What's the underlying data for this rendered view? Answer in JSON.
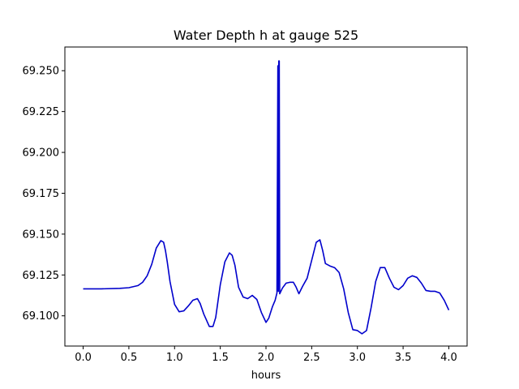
{
  "chart_data": {
    "type": "line",
    "title": "Water Depth h at gauge 525",
    "xlabel": "hours",
    "ylabel": "",
    "xlim": [
      -0.2,
      4.2
    ],
    "ylim": [
      69.0815,
      69.2645
    ],
    "xticks": [
      0.0,
      0.5,
      1.0,
      1.5,
      2.0,
      2.5,
      3.0,
      3.5,
      4.0
    ],
    "xtick_labels": [
      "0.0",
      "0.5",
      "1.0",
      "1.5",
      "2.0",
      "2.5",
      "3.0",
      "3.5",
      "4.0"
    ],
    "yticks": [
      69.1,
      69.125,
      69.15,
      69.175,
      69.2,
      69.225,
      69.25
    ],
    "ytick_labels": [
      "69.100",
      "69.125",
      "69.150",
      "69.175",
      "69.200",
      "69.225",
      "69.250"
    ],
    "grid": false,
    "series": [
      {
        "color": "#0000cc",
        "x": [
          0.0,
          0.2,
          0.4,
          0.5,
          0.6,
          0.65,
          0.7,
          0.75,
          0.8,
          0.85,
          0.88,
          0.9,
          0.92,
          0.95,
          1.0,
          1.05,
          1.1,
          1.15,
          1.2,
          1.25,
          1.28,
          1.32,
          1.38,
          1.42,
          1.45,
          1.5,
          1.55,
          1.6,
          1.63,
          1.66,
          1.7,
          1.75,
          1.8,
          1.85,
          1.9,
          1.95,
          2.0,
          2.03,
          2.07,
          2.1,
          2.12,
          2.13,
          2.135,
          2.14,
          2.145,
          2.15,
          2.18,
          2.22,
          2.26,
          2.3,
          2.33,
          2.36,
          2.4,
          2.45,
          2.5,
          2.55,
          2.59,
          2.62,
          2.65,
          2.7,
          2.75,
          2.8,
          2.85,
          2.9,
          2.95,
          3.0,
          3.05,
          3.1,
          3.15,
          3.2,
          3.25,
          3.3,
          3.35,
          3.4,
          3.45,
          3.5,
          3.55,
          3.6,
          3.65,
          3.7,
          3.75,
          3.8,
          3.85,
          3.9,
          3.95,
          4.0
        ],
        "y": [
          69.1165,
          69.1165,
          69.1168,
          69.1172,
          69.1185,
          69.1205,
          69.1245,
          69.1315,
          69.1415,
          69.146,
          69.145,
          69.14,
          69.133,
          69.121,
          69.107,
          69.1025,
          69.103,
          69.106,
          69.1095,
          69.1105,
          69.1075,
          69.101,
          69.0935,
          69.0935,
          69.099,
          69.119,
          69.133,
          69.1385,
          69.137,
          69.131,
          69.1175,
          69.1115,
          69.1105,
          69.1125,
          69.11,
          69.102,
          69.096,
          69.0985,
          69.1055,
          69.1095,
          69.114,
          69.253,
          69.115,
          69.256,
          69.256,
          69.1135,
          69.117,
          69.12,
          69.1205,
          69.1205,
          69.1175,
          69.1135,
          69.118,
          69.123,
          69.134,
          69.145,
          69.1465,
          69.14,
          69.132,
          69.1305,
          69.1295,
          69.1265,
          69.1165,
          69.102,
          69.0915,
          69.091,
          69.089,
          69.091,
          69.105,
          69.121,
          69.1295,
          69.1295,
          69.123,
          69.1175,
          69.116,
          69.1185,
          69.123,
          69.1245,
          69.1235,
          69.12,
          69.1155,
          69.115,
          69.115,
          69.114,
          69.1095,
          69.1035
        ]
      }
    ]
  }
}
